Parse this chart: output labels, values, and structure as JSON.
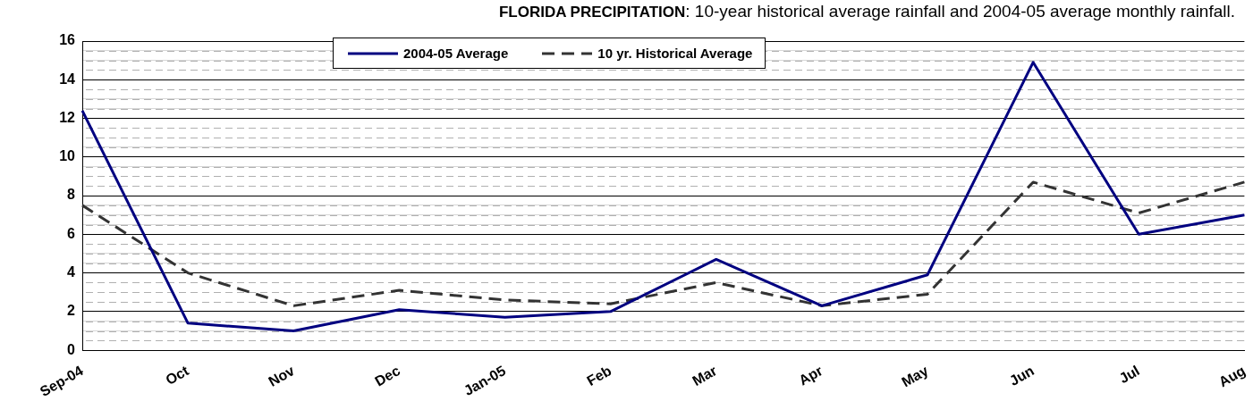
{
  "chart_data": {
    "type": "line",
    "title": "FLORIDA PRECIPITATION: 10-year historical average rainfall and 2004-05 average monthly rainfall.",
    "categories": [
      "Sep-04",
      "Oct",
      "Nov",
      "Dec",
      "Jan-05",
      "Feb",
      "Mar",
      "Apr",
      "May",
      "Jun",
      "Jul",
      "Aug"
    ],
    "series": [
      {
        "name": "2004-05 Average",
        "color": "#000080",
        "line_style": "solid",
        "values": [
          12.4,
          1.4,
          1.0,
          2.1,
          1.7,
          2.0,
          4.7,
          2.3,
          3.9,
          14.9,
          6.0,
          7.0
        ]
      },
      {
        "name": "10 yr. Historical Average",
        "color": "#333333",
        "line_style": "dashed",
        "values": [
          7.5,
          4.0,
          2.3,
          3.1,
          2.6,
          2.4,
          3.5,
          2.3,
          2.9,
          8.7,
          7.1,
          8.7
        ]
      }
    ],
    "ylim": [
      0,
      16
    ],
    "yticks": [
      0,
      {
        "value": 0.5,
        "label": null
      },
      {
        "value": 1,
        "label": null
      },
      {
        "value": 1.5,
        "label": null
      },
      2,
      {
        "value": 2.5,
        "label": null
      },
      {
        "value": 3,
        "label": null
      },
      {
        "value": 3.5,
        "label": null
      },
      4,
      {
        "value": 4.5,
        "label": null
      },
      {
        "value": 5,
        "label": null
      },
      {
        "value": 5.5,
        "label": null
      },
      6,
      {
        "value": 6.5,
        "label": null
      },
      {
        "value": 7,
        "label": null
      },
      {
        "value": 7.5,
        "label": null
      },
      8,
      {
        "value": 8.5,
        "label": null
      },
      {
        "value": 9,
        "label": null
      },
      {
        "value": 9.5,
        "label": null
      },
      10,
      {
        "value": 10.5,
        "label": null
      },
      {
        "value": 11,
        "label": null
      },
      {
        "value": 11.5,
        "label": null
      },
      12,
      {
        "value": 12.5,
        "label": null
      },
      {
        "value": 13,
        "label": null
      },
      {
        "value": 13.5,
        "label": null
      },
      14,
      {
        "value": 14.5,
        "label": null
      },
      {
        "value": 15,
        "label": null
      },
      {
        "value": 15.5,
        "label": null
      },
      16
    ],
    "grid": "y",
    "legend": "top",
    "marker": "none"
  }
}
